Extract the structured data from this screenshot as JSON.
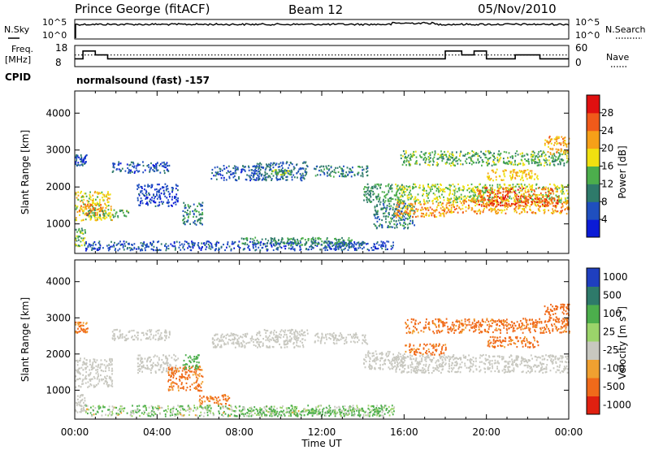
{
  "header": {
    "station": "Prince George (fitACF)",
    "beam": "Beam 12",
    "date": "05/Nov/2010"
  },
  "strip_panels": {
    "nsky_label": "N.Sky",
    "nsky_ticks": [
      "10^5",
      "10^0"
    ],
    "nsearch_label": "N.Search",
    "nsearch_ticks": [
      "10^5",
      "10^0"
    ],
    "freq_label": "Freq.",
    "freq_unit": "[MHz]",
    "freq_ticks": [
      "18",
      "8"
    ],
    "nave_label": "Nave",
    "nave_ticks": [
      "60",
      "0"
    ],
    "cpid_label": "CPID",
    "cpid_text": "normalsound (fast) -157"
  },
  "axes": {
    "xlabel": "Time UT",
    "x_ticks": [
      "00:00",
      "04:00",
      "08:00",
      "12:00",
      "16:00",
      "20:00",
      "00:00"
    ],
    "ylabel": "Slant Range [km]",
    "y_ticks": [
      "1000",
      "2000",
      "3000",
      "4000"
    ]
  },
  "colorbars": {
    "power": {
      "label": "Power [dB]",
      "ticks": [
        "4",
        "8",
        "12",
        "16",
        "20",
        "24",
        "28"
      ],
      "colors": [
        "#0b1bd6",
        "#1f4fbf",
        "#2e7a6a",
        "#4cae4c",
        "#f0e010",
        "#f6a018",
        "#f05a1a",
        "#e01010"
      ]
    },
    "velocity": {
      "label": "Velocity [m s",
      "label_sup": "-1",
      "label_end": "]",
      "ticks": [
        "1000",
        "500",
        "100",
        "25",
        "-25",
        "-100",
        "-500",
        "-1000"
      ],
      "colors": [
        "#1f3fbf",
        "#2e7a6a",
        "#4cae4c",
        "#9bd46a",
        "#c8c8c0",
        "#f0a030",
        "#f06a1a",
        "#e02010"
      ]
    }
  },
  "chart_data": [
    {
      "type": "heatmap",
      "title": "",
      "xlabel": "Time UT",
      "ylabel": "Slant Range [km]",
      "xlim": [
        0,
        24
      ],
      "ylim": [
        200,
        4600
      ],
      "colorbar": "Power [dB]",
      "features": [
        {
          "t0": 0.0,
          "t1": 0.6,
          "r0": 2600,
          "r1": 2900,
          "v": 6
        },
        {
          "t0": 0.0,
          "t1": 1.8,
          "r0": 1100,
          "r1": 1900,
          "v": 18
        },
        {
          "t0": 0.2,
          "t1": 1.4,
          "r0": 1250,
          "r1": 1550,
          "v": 24
        },
        {
          "t0": 0.0,
          "t1": 0.5,
          "r0": 400,
          "r1": 900,
          "v": 14
        },
        {
          "t0": 0.6,
          "t1": 2.6,
          "r0": 1200,
          "r1": 1400,
          "v": 14
        },
        {
          "t0": 1.8,
          "t1": 4.6,
          "r0": 2400,
          "r1": 2700,
          "v": 6
        },
        {
          "t0": 3.0,
          "t1": 5.0,
          "r0": 1500,
          "r1": 2100,
          "v": 5
        },
        {
          "t0": 5.2,
          "t1": 6.2,
          "r0": 1000,
          "r1": 1600,
          "v": 10
        },
        {
          "t0": 6.6,
          "t1": 9.0,
          "r0": 2200,
          "r1": 2600,
          "v": 6
        },
        {
          "t0": 8.8,
          "t1": 11.3,
          "r0": 2200,
          "r1": 2700,
          "v": 8
        },
        {
          "t0": 9.5,
          "t1": 10.5,
          "r0": 2350,
          "r1": 2500,
          "v": 14
        },
        {
          "t0": 11.6,
          "t1": 14.2,
          "r0": 2300,
          "r1": 2600,
          "v": 10
        },
        {
          "t0": 14.0,
          "t1": 16.0,
          "r0": 1600,
          "r1": 2100,
          "v": 12
        },
        {
          "t0": 14.5,
          "t1": 16.5,
          "r0": 900,
          "r1": 1600,
          "v": 10
        },
        {
          "t0": 15.5,
          "t1": 18.0,
          "r0": 1200,
          "r1": 1600,
          "v": 22
        },
        {
          "t0": 15.5,
          "t1": 24.0,
          "r0": 1600,
          "r1": 2100,
          "v": 16
        },
        {
          "t0": 15.8,
          "t1": 24.0,
          "r0": 2600,
          "r1": 3000,
          "v": 14
        },
        {
          "t0": 18.0,
          "t1": 24.0,
          "r0": 1300,
          "r1": 1700,
          "v": 22
        },
        {
          "t0": 19.5,
          "t1": 23.5,
          "r0": 1500,
          "r1": 2000,
          "v": 26
        },
        {
          "t0": 20.0,
          "t1": 22.5,
          "r0": 2200,
          "r1": 2500,
          "v": 20
        },
        {
          "t0": 22.8,
          "t1": 24.0,
          "r0": 2900,
          "r1": 3400,
          "v": 22
        },
        {
          "t0": 0.5,
          "t1": 15.5,
          "r0": 300,
          "r1": 550,
          "v": 6
        },
        {
          "t0": 8.0,
          "t1": 13.5,
          "r0": 450,
          "r1": 650,
          "v": 12
        },
        {
          "t0": 12.0,
          "t1": 14.0,
          "r0": 350,
          "r1": 550,
          "v": 8
        }
      ]
    },
    {
      "type": "heatmap",
      "title": "",
      "xlabel": "Time UT",
      "ylabel": "Slant Range [km]",
      "xlim": [
        0,
        24
      ],
      "ylim": [
        200,
        4600
      ],
      "colorbar": "Velocity [m s-1]",
      "features": [
        {
          "t0": 0.0,
          "t1": 1.8,
          "r0": 1100,
          "r1": 1900,
          "v": 0
        },
        {
          "t0": 0.0,
          "t1": 0.6,
          "r0": 2600,
          "r1": 2900,
          "v": -120
        },
        {
          "t0": 0.0,
          "t1": 0.5,
          "r0": 400,
          "r1": 900,
          "v": 0
        },
        {
          "t0": 1.8,
          "t1": 4.6,
          "r0": 2400,
          "r1": 2700,
          "v": 0
        },
        {
          "t0": 3.0,
          "t1": 5.0,
          "r0": 1500,
          "r1": 2000,
          "v": 0
        },
        {
          "t0": 4.5,
          "t1": 6.2,
          "r0": 1000,
          "r1": 1700,
          "v": -150
        },
        {
          "t0": 5.2,
          "t1": 6.0,
          "r0": 1600,
          "r1": 2000,
          "v": 200
        },
        {
          "t0": 6.0,
          "t1": 7.5,
          "r0": 600,
          "r1": 900,
          "v": -120
        },
        {
          "t0": 6.6,
          "t1": 9.0,
          "r0": 2200,
          "r1": 2600,
          "v": 0
        },
        {
          "t0": 8.8,
          "t1": 11.3,
          "r0": 2200,
          "r1": 2700,
          "v": 0
        },
        {
          "t0": 11.6,
          "t1": 14.2,
          "r0": 2300,
          "r1": 2600,
          "v": 0
        },
        {
          "t0": 14.0,
          "t1": 16.0,
          "r0": 1600,
          "r1": 2100,
          "v": 0
        },
        {
          "t0": 15.5,
          "t1": 24.0,
          "r0": 1500,
          "r1": 2000,
          "v": 0
        },
        {
          "t0": 16.0,
          "t1": 24.0,
          "r0": 2600,
          "r1": 3000,
          "v": -150
        },
        {
          "t0": 16.0,
          "t1": 18.0,
          "r0": 2000,
          "r1": 2300,
          "v": -150
        },
        {
          "t0": 20.0,
          "t1": 22.5,
          "r0": 2200,
          "r1": 2500,
          "v": -150
        },
        {
          "t0": 22.8,
          "t1": 24.0,
          "r0": 2900,
          "r1": 3400,
          "v": -200
        },
        {
          "t0": 0.5,
          "t1": 15.5,
          "r0": 300,
          "r1": 600,
          "v": 50
        },
        {
          "t0": 8.0,
          "t1": 15.0,
          "r0": 300,
          "r1": 500,
          "v": 80
        }
      ]
    }
  ],
  "strip_data": {
    "freq_steps": [
      {
        "t": 0.0,
        "v": 12
      },
      {
        "t": 0.4,
        "v": 16
      },
      {
        "t": 1.0,
        "v": 14
      },
      {
        "t": 1.6,
        "v": 12
      },
      {
        "t": 6.6,
        "v": 12
      },
      {
        "t": 7.0,
        "v": 12
      },
      {
        "t": 10.5,
        "v": 12
      },
      {
        "t": 12.0,
        "v": 12
      },
      {
        "t": 18.0,
        "v": 16
      },
      {
        "t": 18.8,
        "v": 14
      },
      {
        "t": 19.4,
        "v": 16
      },
      {
        "t": 20.0,
        "v": 12
      },
      {
        "t": 21.4,
        "v": 14
      },
      {
        "t": 22.0,
        "v": 14
      },
      {
        "t": 22.6,
        "v": 12
      },
      {
        "t": 24.0,
        "v": 12
      }
    ],
    "nave_level": 33
  }
}
